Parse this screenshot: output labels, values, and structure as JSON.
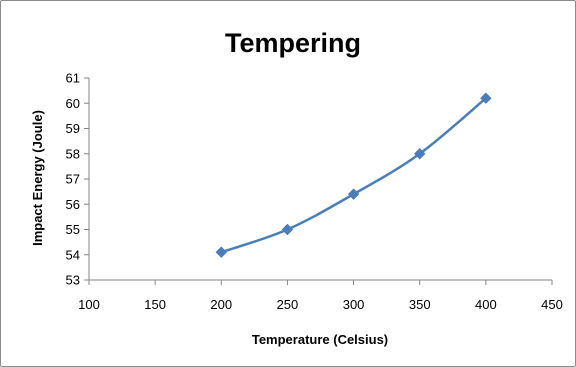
{
  "chart_data": {
    "type": "line",
    "title": "Tempering",
    "xlabel": "Temperature (Celsius)",
    "ylabel": "Impact Energy (Joule)",
    "xlim": [
      100,
      450
    ],
    "ylim": [
      53,
      61
    ],
    "xticks": [
      100,
      150,
      200,
      250,
      300,
      350,
      400,
      450
    ],
    "yticks": [
      53,
      54,
      55,
      56,
      57,
      58,
      59,
      60,
      61
    ],
    "grid": false,
    "legend": "none",
    "series": [
      {
        "color": "#4a7ebb",
        "marker": "diamond",
        "smooth": true,
        "x": [
          200,
          250,
          300,
          350,
          400
        ],
        "y": [
          54.1,
          55.0,
          56.4,
          58.0,
          60.2
        ]
      }
    ]
  }
}
